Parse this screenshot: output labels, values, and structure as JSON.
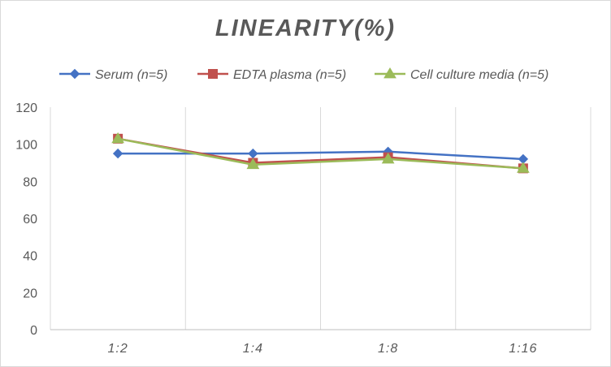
{
  "chart_data": {
    "type": "line",
    "title": "LINEARITY(%)",
    "xlabel": "",
    "ylabel": "",
    "categories": [
      "1:2",
      "1:4",
      "1:8",
      "1:16"
    ],
    "ylim": [
      0,
      120
    ],
    "yticks": [
      0,
      20,
      40,
      60,
      80,
      100,
      120
    ],
    "grid": "vertical",
    "legend_position": "top",
    "series": [
      {
        "name": "Serum (n=5)",
        "values": [
          95,
          95,
          96,
          92
        ],
        "color": "#4472c4",
        "marker": "diamond"
      },
      {
        "name": "EDTA plasma (n=5)",
        "values": [
          103,
          90,
          93,
          87
        ],
        "color": "#c0504d",
        "marker": "square"
      },
      {
        "name": "Cell culture media (n=5)",
        "values": [
          103,
          89,
          92,
          87
        ],
        "color": "#9bbb59",
        "marker": "triangle"
      }
    ]
  }
}
